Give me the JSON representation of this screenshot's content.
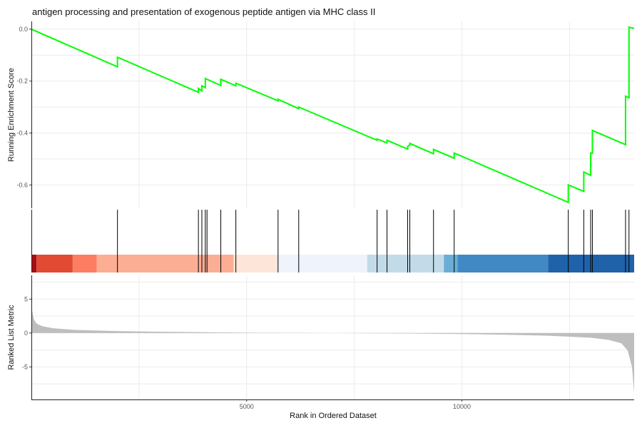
{
  "chart_data": {
    "type": "line",
    "title": "antigen processing and presentation of exogenous peptide antigen via MHC class II",
    "xlabel": "Rank in Ordered Dataset",
    "xlim": [
      1,
      14000
    ],
    "x_ticks": [
      5000,
      10000
    ],
    "x_tick_labels": [
      "5000",
      "10000"
    ],
    "grid": true,
    "colors": {
      "es_line": "#00ff00",
      "metric_fill": "#bebebe",
      "hit_line": "#000000"
    },
    "panels": {
      "enrichment": {
        "ylabel": "Running Enrichment Score",
        "ylim": [
          -0.69,
          0.03
        ],
        "y_ticks": [
          0.0,
          -0.2,
          -0.4,
          -0.6
        ],
        "y_tick_labels": [
          "0.0",
          "-0.2",
          "-0.4",
          "-0.6"
        ],
        "series": [
          {
            "x": [
              1,
              2000,
              2000,
              3880,
              3880,
              3960,
              3960,
              4040,
              4040,
              4080,
              4080,
              4400,
              4400,
              4750,
              4750,
              5730,
              5730,
              6210,
              6210,
              8030,
              8030,
              8260,
              8260,
              8740,
              8740,
              8790,
              8790,
              9340,
              9340,
              9820,
              9820,
              12470,
              12470,
              12830,
              12830,
              12990,
              12990,
              13030,
              13030,
              13800,
              13800,
              13880,
              13880,
              14000
            ],
            "y": [
              0.0,
              -0.145,
              -0.108,
              -0.243,
              -0.228,
              -0.238,
              -0.218,
              -0.225,
              -0.19,
              -0.193,
              -0.193,
              -0.217,
              -0.193,
              -0.218,
              -0.208,
              -0.276,
              -0.27,
              -0.306,
              -0.3,
              -0.428,
              -0.423,
              -0.438,
              -0.428,
              -0.462,
              -0.452,
              -0.445,
              -0.44,
              -0.48,
              -0.463,
              -0.497,
              -0.477,
              -0.667,
              -0.6,
              -0.625,
              -0.55,
              -0.563,
              -0.477,
              -0.478,
              -0.39,
              -0.445,
              -0.258,
              -0.264,
              0.008,
              0.003
            ]
          }
        ]
      },
      "hits": {
        "positions": [
          2000,
          3880,
          3960,
          4040,
          4080,
          4400,
          4750,
          5730,
          6210,
          8030,
          8260,
          8740,
          8790,
          9340,
          9820,
          12470,
          12830,
          12990,
          13030,
          13800,
          13880
        ]
      },
      "color_bar": {
        "segments": [
          {
            "from": 1,
            "to": 120,
            "color": "#a50f15"
          },
          {
            "from": 120,
            "to": 960,
            "color": "#e34a33"
          },
          {
            "from": 960,
            "to": 1520,
            "color": "#fc7d61"
          },
          {
            "from": 1520,
            "to": 4700,
            "color": "#fcae94"
          },
          {
            "from": 4700,
            "to": 5730,
            "color": "#fee5d9"
          },
          {
            "from": 5730,
            "to": 7800,
            "color": "#eff3fb"
          },
          {
            "from": 7800,
            "to": 9580,
            "color": "#c3dbe9"
          },
          {
            "from": 9580,
            "to": 9900,
            "color": "#6aaed6"
          },
          {
            "from": 9900,
            "to": 12000,
            "color": "#4189c4"
          },
          {
            "from": 12000,
            "to": 14000,
            "color": "#2062aa"
          }
        ]
      },
      "ranked_metric": {
        "ylabel": "Ranked List Metric",
        "ylim": [
          -9.8,
          8.5
        ],
        "y_ticks": [
          5,
          0,
          -5
        ],
        "y_tick_labels": [
          "5",
          "0",
          "-5"
        ],
        "x": [
          1,
          20,
          60,
          120,
          250,
          500,
          1000,
          2000,
          3000,
          5000,
          7000,
          9000,
          10000,
          11000,
          12000,
          12500,
          13000,
          13400,
          13700,
          13850,
          13950,
          14000
        ],
        "values": [
          4.6,
          3.2,
          2.0,
          1.4,
          1.0,
          0.7,
          0.45,
          0.28,
          0.18,
          0.05,
          0.0,
          -0.08,
          -0.15,
          -0.25,
          -0.4,
          -0.55,
          -0.7,
          -1.0,
          -1.5,
          -2.6,
          -5.0,
          -8.8
        ]
      }
    }
  }
}
